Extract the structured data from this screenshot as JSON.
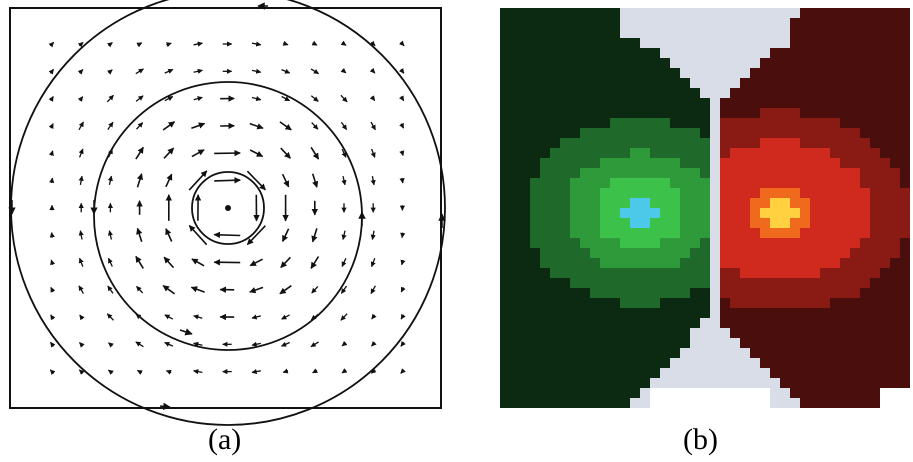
{
  "figure": {
    "panel_a": {
      "caption": "(a)",
      "description_kind": "vector-field with concentric circular streamlines"
    },
    "panel_b": {
      "caption": "(b)",
      "description_kind": "pixelated field map, green lobe left, red lobe right, white gap center"
    }
  },
  "colors": {
    "frame": "#000000",
    "dark_green": "#0c2a12",
    "green_mid": "#1f6a2a",
    "green_bright": "#2f9a3a",
    "green_light": "#3cc24a",
    "cyan": "#4cc8e8",
    "dark_red": "#4a0f0c",
    "red_mid": "#8a1a14",
    "red_bright": "#d02a1e",
    "orange": "#f06a1e",
    "yellow": "#ffd040",
    "gap": "#d8dde8"
  }
}
